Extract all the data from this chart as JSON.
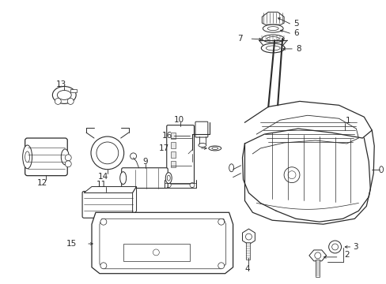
{
  "bg_color": "#ffffff",
  "line_color": "#2a2a2a",
  "label_color": "#000000",
  "figsize": [
    4.89,
    3.6
  ],
  "dpi": 100,
  "label_fontsize": 7.5
}
